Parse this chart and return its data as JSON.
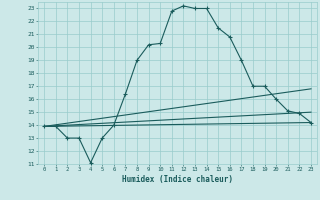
{
  "xlabel": "Humidex (Indice chaleur)",
  "xlim": [
    -0.5,
    23.5
  ],
  "ylim": [
    11,
    23.5
  ],
  "yticks": [
    11,
    12,
    13,
    14,
    15,
    16,
    17,
    18,
    19,
    20,
    21,
    22,
    23
  ],
  "xticks": [
    0,
    1,
    2,
    3,
    4,
    5,
    6,
    7,
    8,
    9,
    10,
    11,
    12,
    13,
    14,
    15,
    16,
    17,
    18,
    19,
    20,
    21,
    22,
    23
  ],
  "bg_color": "#cce8e8",
  "grid_color": "#99cccc",
  "line_color": "#1a5c5c",
  "line1_x": [
    0,
    1,
    2,
    3,
    4,
    5,
    6,
    7,
    8,
    9,
    10,
    11,
    12,
    13,
    14,
    15,
    16,
    17,
    18,
    19,
    20,
    21,
    22,
    23
  ],
  "line1_y": [
    13.9,
    13.9,
    13.0,
    13.0,
    11.1,
    13.0,
    14.0,
    16.4,
    19.0,
    20.2,
    20.3,
    22.8,
    23.2,
    23.0,
    23.0,
    21.5,
    20.8,
    19.0,
    17.0,
    17.0,
    16.0,
    15.1,
    14.9,
    14.2
  ],
  "line2_x": [
    0,
    23
  ],
  "line2_y": [
    13.9,
    14.2
  ],
  "line3_x": [
    0,
    23
  ],
  "line3_y": [
    13.9,
    15.0
  ],
  "line4_x": [
    0,
    23
  ],
  "line4_y": [
    13.9,
    16.8
  ],
  "marker": "+",
  "markersize": 3,
  "linewidth": 0.8
}
